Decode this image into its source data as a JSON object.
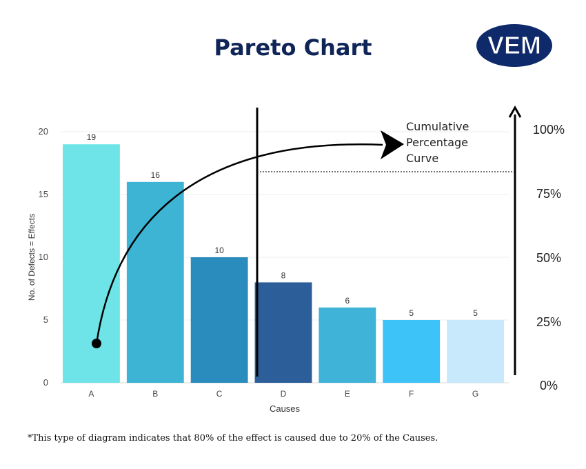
{
  "header": {
    "title": "Pareto Chart",
    "logo_text": "VEM",
    "logo_color": "#0f2a6b"
  },
  "footnote": "*This type of diagram indicates that 80% of the effect is caused due to 20% of the Causes.",
  "chart_data": {
    "type": "bar",
    "title": "Pareto Chart",
    "xlabel": "Causes",
    "ylabel": "No. of Defects = Effects",
    "categories": [
      "A",
      "B",
      "C",
      "D",
      "E",
      "F",
      "G"
    ],
    "values": [
      19,
      16,
      10,
      8,
      6,
      5,
      5
    ],
    "bar_colors": [
      "#6ee4e8",
      "#3db4d4",
      "#2a8bbd",
      "#2c5f9a",
      "#3fb3d8",
      "#3ec3f8",
      "#c8e9fc"
    ],
    "ylim": [
      0,
      20
    ],
    "yticks": [
      "0",
      "5",
      "10",
      "15",
      "20"
    ],
    "secondary_axis": {
      "ticks": [
        "0%",
        "25%",
        "50%",
        "75%",
        "100%"
      ],
      "ylim": [
        0,
        100
      ]
    },
    "annotation": "Cumulative Percentage Curve",
    "grid": true,
    "legend": "none"
  }
}
